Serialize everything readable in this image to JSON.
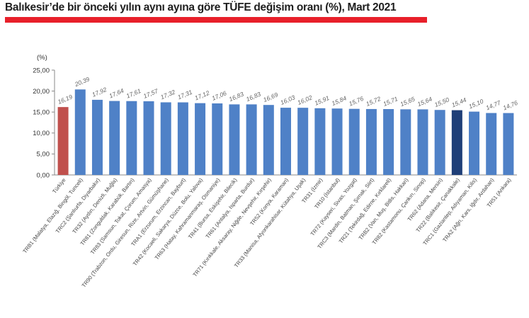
{
  "title": "Balıkesir’de bir önceki yılın aynı ayına göre TÜFE değişim oranı (%), Mart 2021",
  "colors": {
    "title_rule": "#e8202a",
    "bar_default": "#4f81c7",
    "bar_turkiye": "#c0504d",
    "bar_highlight": "#1f3f78"
  },
  "chart_data": {
    "type": "bar",
    "unit_label": "(%)",
    "ylim": [
      0,
      25
    ],
    "yticks": [
      "0,00",
      "5,00",
      "10,00",
      "15,00",
      "20,00",
      "25,00"
    ],
    "grid": false,
    "categories": [
      "Türkiye",
      "TRB1 (Malatya, Elazığ, Bingöl, Tunceli)",
      "TRC2 (Şanlıurfa, Diyarbakır)",
      "TR32 (Aydın, Denizli, Muğla)",
      "TR81 (Zonguldak, Karabük, Bartın)",
      "TR83 (Samsun, Tokat, Çorum, Amasya)",
      "TR90 (Trabzon, Ordu, Giresun, Rize, Artvin, Gümüşhane)",
      "TRA1 (Erzurum, Erzincan, Bayburt)",
      "TR42 (Kocaeli, Sakarya, Düzce, Bolu, Yalova)",
      "TR63 (Hatay, Kahramanmaraş, Osmaniye)",
      "TR41 (Bursa, Eskişehir, Bilecik)",
      "TR61 (Antalya, Isparta, Burdur)",
      "TR71 (Kırıkkale, Aksaray, Niğde, Nevşehir, Kırşehir)",
      "TR52 (Konya, Karaman)",
      "TR33 (Manisa, Afyonkarahisar, Kütahya, Uşak)",
      "TR31 (İzmir)",
      "TR10 (İstanbul)",
      "TR72 (Kayseri, Sivas, Yozgat)",
      "TRC3 (Mardin, Batman, Şırnak, Siirt)",
      "TR21 (Tekirdağ, Edirne, Kırklareli)",
      "TRB2 (Van, Muş, Bitlis, Hakkari)",
      "TR82 (Kastamonu, Çankırı, Sinop)",
      "TR62 (Adana, Mersin)",
      "TR22 (Balıkesir, Çanakkale)",
      "TRC1 (Gaziantep, Adıyaman, Kilis)",
      "TRA2 (Ağrı, Kars, Iğdır, Ardahan)",
      "TR51 (Ankara)"
    ],
    "values": [
      16.19,
      20.39,
      17.92,
      17.64,
      17.61,
      17.57,
      17.32,
      17.31,
      17.12,
      17.06,
      16.83,
      16.83,
      16.69,
      16.03,
      16.02,
      15.91,
      15.84,
      15.76,
      15.72,
      15.71,
      15.65,
      15.64,
      15.5,
      15.44,
      15.1,
      14.77,
      14.76
    ],
    "value_labels": [
      "16,19",
      "20,39",
      "17,92",
      "17,64",
      "17,61",
      "17,57",
      "17,32",
      "17,31",
      "17,12",
      "17,06",
      "16,83",
      "16,83",
      "16,69",
      "16,03",
      "16,02",
      "15,91",
      "15,84",
      "15,76",
      "15,72",
      "15,71",
      "15,65",
      "15,64",
      "15,50",
      "15,44",
      "15,10",
      "14,77",
      "14,76"
    ],
    "turkiye_index": 0,
    "highlight_index": 23
  }
}
